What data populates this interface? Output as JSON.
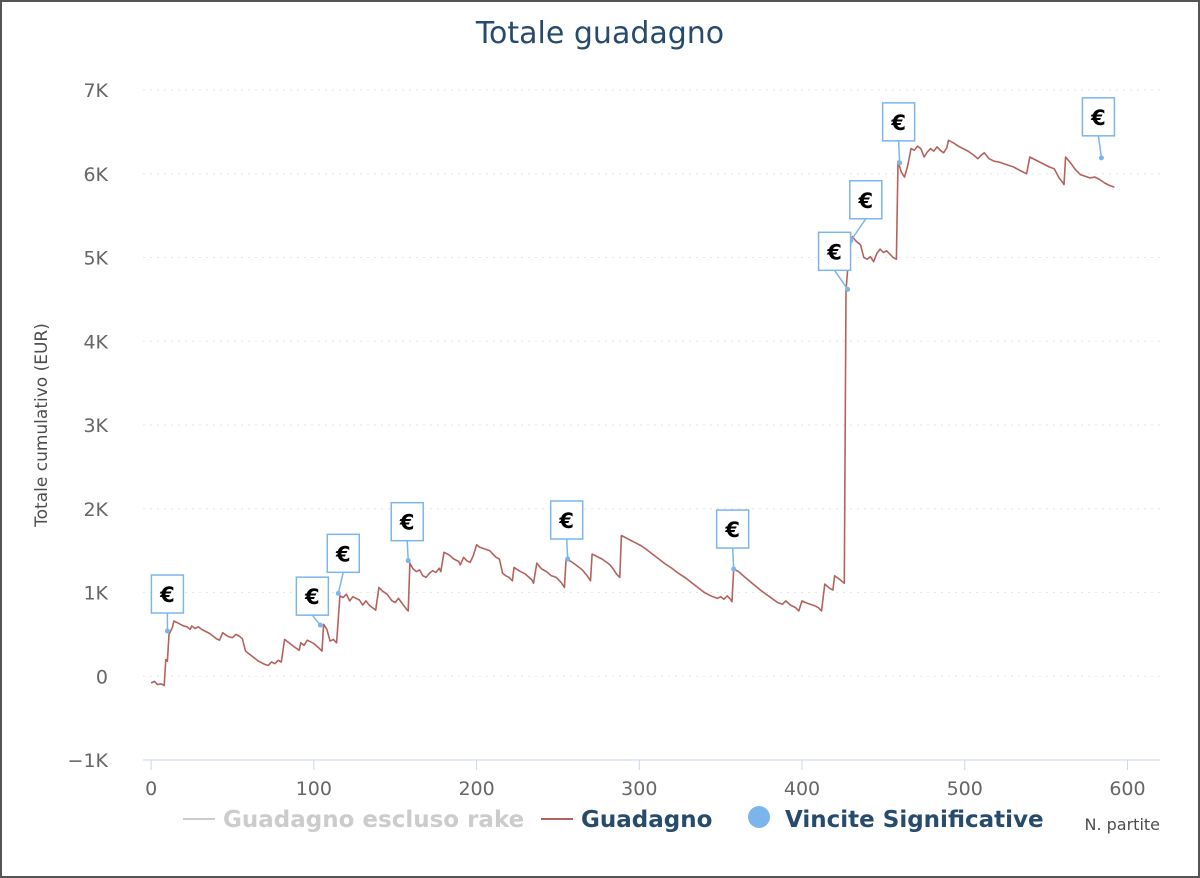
{
  "colors": {
    "title": "#274b6d",
    "guadagno": "#b5625e",
    "rake": "#cccccc",
    "vincite": "#7cb5ec",
    "grid": "#e6e6e6"
  },
  "chart_data": {
    "type": "line",
    "title": "Totale guadagno",
    "xlabel": "N. partite",
    "ylabel": "Totale cumulativo (EUR)",
    "xlim": [
      -5,
      620
    ],
    "ylim": [
      -1000,
      7000
    ],
    "x_ticks": [
      {
        "value": 0,
        "label": "0"
      },
      {
        "value": 100,
        "label": "100"
      },
      {
        "value": 200,
        "label": "200"
      },
      {
        "value": 300,
        "label": "300"
      },
      {
        "value": 400,
        "label": "400"
      },
      {
        "value": 500,
        "label": "500"
      },
      {
        "value": 600,
        "label": "600"
      }
    ],
    "y_ticks": [
      {
        "value": -1000,
        "label": "−1K"
      },
      {
        "value": 0,
        "label": "0"
      },
      {
        "value": 1000,
        "label": "1K"
      },
      {
        "value": 2000,
        "label": "2K"
      },
      {
        "value": 3000,
        "label": "3K"
      },
      {
        "value": 4000,
        "label": "4K"
      },
      {
        "value": 5000,
        "label": "5K"
      },
      {
        "value": 6000,
        "label": "6K"
      },
      {
        "value": 7000,
        "label": "7K"
      }
    ],
    "grid": true,
    "legend_position": "bottom-center",
    "series": [
      {
        "name": "Guadagno escluso rake",
        "visible": false,
        "points": []
      },
      {
        "name": "Guadagno",
        "points": [
          [
            0,
            -80
          ],
          [
            2,
            -60
          ],
          [
            4,
            -100
          ],
          [
            6,
            -90
          ],
          [
            8,
            -110
          ],
          [
            9,
            200
          ],
          [
            10,
            180
          ],
          [
            11,
            500
          ],
          [
            13,
            580
          ],
          [
            14,
            660
          ],
          [
            16,
            640
          ],
          [
            18,
            620
          ],
          [
            20,
            600
          ],
          [
            22,
            590
          ],
          [
            24,
            560
          ],
          [
            25,
            600
          ],
          [
            27,
            570
          ],
          [
            29,
            590
          ],
          [
            31,
            560
          ],
          [
            34,
            530
          ],
          [
            36,
            510
          ],
          [
            38,
            480
          ],
          [
            40,
            450
          ],
          [
            42,
            430
          ],
          [
            44,
            520
          ],
          [
            46,
            490
          ],
          [
            48,
            470
          ],
          [
            50,
            460
          ],
          [
            52,
            500
          ],
          [
            54,
            480
          ],
          [
            56,
            450
          ],
          [
            58,
            300
          ],
          [
            62,
            240
          ],
          [
            66,
            180
          ],
          [
            70,
            140
          ],
          [
            72,
            130
          ],
          [
            74,
            170
          ],
          [
            76,
            150
          ],
          [
            78,
            190
          ],
          [
            80,
            170
          ],
          [
            82,
            440
          ],
          [
            84,
            410
          ],
          [
            88,
            350
          ],
          [
            91,
            310
          ],
          [
            92,
            400
          ],
          [
            94,
            370
          ],
          [
            96,
            430
          ],
          [
            100,
            390
          ],
          [
            103,
            340
          ],
          [
            105,
            300
          ],
          [
            106,
            620
          ],
          [
            108,
            560
          ],
          [
            110,
            420
          ],
          [
            112,
            440
          ],
          [
            114,
            400
          ],
          [
            116,
            960
          ],
          [
            118,
            940
          ],
          [
            120,
            980
          ],
          [
            122,
            900
          ],
          [
            124,
            950
          ],
          [
            126,
            930
          ],
          [
            128,
            910
          ],
          [
            130,
            850
          ],
          [
            132,
            900
          ],
          [
            134,
            850
          ],
          [
            136,
            820
          ],
          [
            138,
            790
          ],
          [
            140,
            1060
          ],
          [
            142,
            1020
          ],
          [
            145,
            980
          ],
          [
            148,
            900
          ],
          [
            150,
            880
          ],
          [
            152,
            930
          ],
          [
            155,
            850
          ],
          [
            157,
            800
          ],
          [
            158,
            780
          ],
          [
            159,
            1350
          ],
          [
            161,
            1280
          ],
          [
            163,
            1250
          ],
          [
            165,
            1270
          ],
          [
            167,
            1200
          ],
          [
            169,
            1180
          ],
          [
            171,
            1230
          ],
          [
            173,
            1260
          ],
          [
            175,
            1240
          ],
          [
            177,
            1290
          ],
          [
            178,
            1250
          ],
          [
            180,
            1480
          ],
          [
            183,
            1450
          ],
          [
            186,
            1400
          ],
          [
            189,
            1370
          ],
          [
            190,
            1330
          ],
          [
            192,
            1420
          ],
          [
            194,
            1380
          ],
          [
            196,
            1360
          ],
          [
            198,
            1440
          ],
          [
            200,
            1570
          ],
          [
            202,
            1540
          ],
          [
            205,
            1520
          ],
          [
            208,
            1500
          ],
          [
            210,
            1460
          ],
          [
            212,
            1420
          ],
          [
            214,
            1400
          ],
          [
            216,
            1230
          ],
          [
            218,
            1200
          ],
          [
            220,
            1180
          ],
          [
            222,
            1140
          ],
          [
            223,
            1300
          ],
          [
            226,
            1260
          ],
          [
            230,
            1220
          ],
          [
            234,
            1150
          ],
          [
            235,
            1110
          ],
          [
            237,
            1350
          ],
          [
            240,
            1280
          ],
          [
            243,
            1250
          ],
          [
            246,
            1200
          ],
          [
            249,
            1180
          ],
          [
            252,
            1120
          ],
          [
            254,
            1060
          ],
          [
            255,
            1400
          ],
          [
            258,
            1370
          ],
          [
            261,
            1330
          ],
          [
            263,
            1300
          ],
          [
            265,
            1270
          ],
          [
            268,
            1200
          ],
          [
            270,
            1140
          ],
          [
            271,
            1460
          ],
          [
            274,
            1430
          ],
          [
            277,
            1400
          ],
          [
            280,
            1360
          ],
          [
            282,
            1330
          ],
          [
            284,
            1280
          ],
          [
            286,
            1220
          ],
          [
            288,
            1180
          ],
          [
            289,
            1680
          ],
          [
            292,
            1650
          ],
          [
            295,
            1620
          ],
          [
            298,
            1590
          ],
          [
            301,
            1560
          ],
          [
            304,
            1520
          ],
          [
            308,
            1460
          ],
          [
            312,
            1400
          ],
          [
            316,
            1340
          ],
          [
            320,
            1290
          ],
          [
            324,
            1230
          ],
          [
            328,
            1180
          ],
          [
            332,
            1120
          ],
          [
            336,
            1060
          ],
          [
            340,
            1000
          ],
          [
            344,
            960
          ],
          [
            348,
            930
          ],
          [
            350,
            950
          ],
          [
            352,
            920
          ],
          [
            354,
            960
          ],
          [
            356,
            920
          ],
          [
            357,
            890
          ],
          [
            358,
            1280
          ],
          [
            361,
            1250
          ],
          [
            365,
            1180
          ],
          [
            370,
            1100
          ],
          [
            375,
            1020
          ],
          [
            380,
            950
          ],
          [
            385,
            880
          ],
          [
            388,
            860
          ],
          [
            390,
            900
          ],
          [
            393,
            850
          ],
          [
            396,
            820
          ],
          [
            398,
            780
          ],
          [
            400,
            900
          ],
          [
            402,
            880
          ],
          [
            405,
            860
          ],
          [
            408,
            840
          ],
          [
            410,
            820
          ],
          [
            412,
            780
          ],
          [
            414,
            1100
          ],
          [
            417,
            1050
          ],
          [
            419,
            1030
          ],
          [
            420,
            1200
          ],
          [
            423,
            1160
          ],
          [
            426,
            1110
          ],
          [
            427,
            4600
          ],
          [
            429,
            5100
          ],
          [
            431,
            5250
          ],
          [
            433,
            5200
          ],
          [
            436,
            5150
          ],
          [
            438,
            5000
          ],
          [
            440,
            4980
          ],
          [
            442,
            5010
          ],
          [
            444,
            4950
          ],
          [
            446,
            5050
          ],
          [
            448,
            5100
          ],
          [
            450,
            5060
          ],
          [
            452,
            5080
          ],
          [
            454,
            5040
          ],
          [
            456,
            5000
          ],
          [
            458,
            4980
          ],
          [
            459,
            6150
          ],
          [
            461,
            6020
          ],
          [
            463,
            5960
          ],
          [
            465,
            6100
          ],
          [
            467,
            6300
          ],
          [
            469,
            6280
          ],
          [
            471,
            6330
          ],
          [
            473,
            6300
          ],
          [
            475,
            6200
          ],
          [
            477,
            6260
          ],
          [
            479,
            6300
          ],
          [
            481,
            6270
          ],
          [
            483,
            6320
          ],
          [
            485,
            6280
          ],
          [
            487,
            6250
          ],
          [
            489,
            6310
          ],
          [
            490,
            6400
          ],
          [
            493,
            6370
          ],
          [
            496,
            6330
          ],
          [
            499,
            6300
          ],
          [
            502,
            6270
          ],
          [
            505,
            6230
          ],
          [
            508,
            6180
          ],
          [
            510,
            6220
          ],
          [
            512,
            6250
          ],
          [
            515,
            6180
          ],
          [
            518,
            6150
          ],
          [
            521,
            6140
          ],
          [
            524,
            6120
          ],
          [
            527,
            6100
          ],
          [
            530,
            6080
          ],
          [
            533,
            6050
          ],
          [
            536,
            6020
          ],
          [
            538,
            6000
          ],
          [
            540,
            6200
          ],
          [
            543,
            6170
          ],
          [
            546,
            6140
          ],
          [
            549,
            6110
          ],
          [
            552,
            6080
          ],
          [
            555,
            6060
          ],
          [
            558,
            5950
          ],
          [
            560,
            5900
          ],
          [
            561,
            5870
          ],
          [
            562,
            6200
          ],
          [
            565,
            6130
          ],
          [
            568,
            6050
          ],
          [
            571,
            5990
          ],
          [
            574,
            5970
          ],
          [
            577,
            5950
          ],
          [
            580,
            5960
          ],
          [
            583,
            5930
          ],
          [
            586,
            5890
          ],
          [
            589,
            5860
          ],
          [
            592,
            5840
          ]
        ]
      },
      {
        "name": "Vincite Significative",
        "points": [
          [
            10,
            540
          ],
          [
            104,
            610
          ],
          [
            115,
            990
          ],
          [
            158,
            1380
          ],
          [
            256,
            1400
          ],
          [
            358,
            1280
          ],
          [
            428,
            4620
          ],
          [
            430,
            5200
          ],
          [
            460,
            6130
          ],
          [
            584,
            6190
          ]
        ]
      }
    ],
    "flags": [
      {
        "x": 10,
        "y": 540,
        "label": "€"
      },
      {
        "x": 104,
        "y": 610,
        "label": "€"
      },
      {
        "x": 115,
        "y": 990,
        "label": "€"
      },
      {
        "x": 158,
        "y": 1380,
        "label": "€"
      },
      {
        "x": 256,
        "y": 1400,
        "label": "€"
      },
      {
        "x": 358,
        "y": 1280,
        "label": "€"
      },
      {
        "x": 428,
        "y": 4620,
        "label": "€"
      },
      {
        "x": 430,
        "y": 5200,
        "label": "€"
      },
      {
        "x": 460,
        "y": 6130,
        "label": "€"
      },
      {
        "x": 584,
        "y": 6190,
        "label": "€"
      }
    ]
  }
}
